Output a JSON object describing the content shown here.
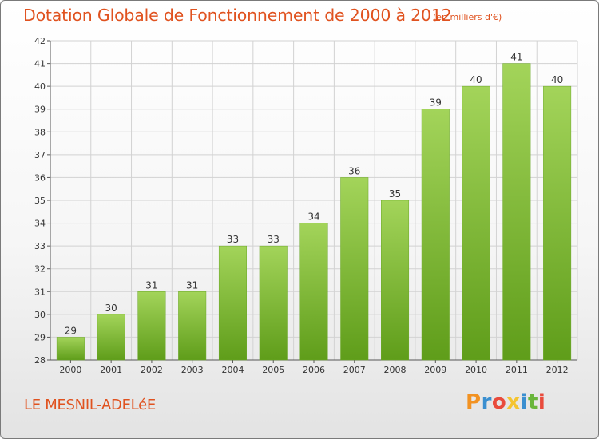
{
  "header": {
    "title": "Dotation Globale de Fonctionnement de 2000 à 2012",
    "unit": "(en milliers d'€)"
  },
  "footer": {
    "commune": "LE MESNIL-ADELéE",
    "logo": "Proxiti"
  },
  "colors": {
    "bar_light": "#a3d45a",
    "bar_dark": "#5f9d1a",
    "text_accent": "#e0521f"
  },
  "chart_data": {
    "type": "bar",
    "title": "Dotation Globale de Fonctionnement de 2000 à 2012",
    "subtitle": "(en milliers d'€)",
    "xlabel": "",
    "ylabel": "",
    "categories": [
      "2000",
      "2001",
      "2002",
      "2003",
      "2004",
      "2005",
      "2006",
      "2007",
      "2008",
      "2009",
      "2010",
      "2011",
      "2012"
    ],
    "values": [
      29,
      30,
      31,
      31,
      33,
      33,
      34,
      36,
      35,
      39,
      40,
      41,
      40
    ],
    "ylim": [
      28,
      42
    ],
    "yticks": [
      28,
      29,
      30,
      31,
      32,
      33,
      34,
      35,
      36,
      37,
      38,
      39,
      40,
      41,
      42
    ],
    "grid": true,
    "legend": "none"
  }
}
